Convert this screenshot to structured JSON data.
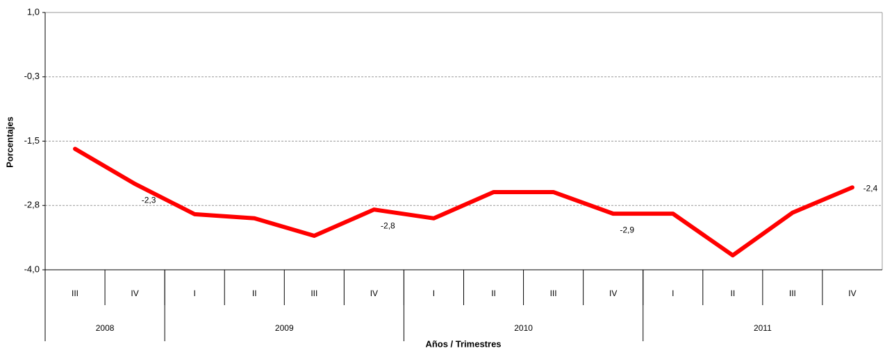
{
  "chart_data": {
    "type": "line",
    "y_label": "Porcentajes",
    "x_label": "Años / Trimestres",
    "categories": [
      "III",
      "IV",
      "I",
      "II",
      "III",
      "IV",
      "I",
      "II",
      "III",
      "IV",
      "I",
      "II",
      "III",
      "IV"
    ],
    "groups": [
      {
        "name": "2008",
        "count": 2
      },
      {
        "name": "2009",
        "count": 4
      },
      {
        "name": "2010",
        "count": 4
      },
      {
        "name": "2011",
        "count": 4
      }
    ],
    "series": [
      {
        "name": null,
        "color": "#ff0000",
        "values": [
          -1.65,
          -2.33,
          -2.92,
          -3.0,
          -3.34,
          -2.83,
          -3.0,
          -2.49,
          -2.49,
          -2.91,
          -2.91,
          -3.72,
          -2.89,
          -2.4
        ],
        "value_labels": [
          null,
          "-2,3",
          null,
          null,
          null,
          "-2,8",
          null,
          null,
          null,
          "-2,9",
          null,
          null,
          null,
          "-2,4"
        ]
      }
    ],
    "ylim": [
      -4.0,
      1.0
    ],
    "yticks": [
      {
        "value": 1.0,
        "label": "1,0"
      },
      {
        "value": -0.25,
        "label": "-0,3"
      },
      {
        "value": -1.5,
        "label": "-1,5"
      },
      {
        "value": -2.75,
        "label": "-2,8"
      },
      {
        "value": -4.0,
        "label": "-4,0"
      }
    ],
    "grid": true
  }
}
